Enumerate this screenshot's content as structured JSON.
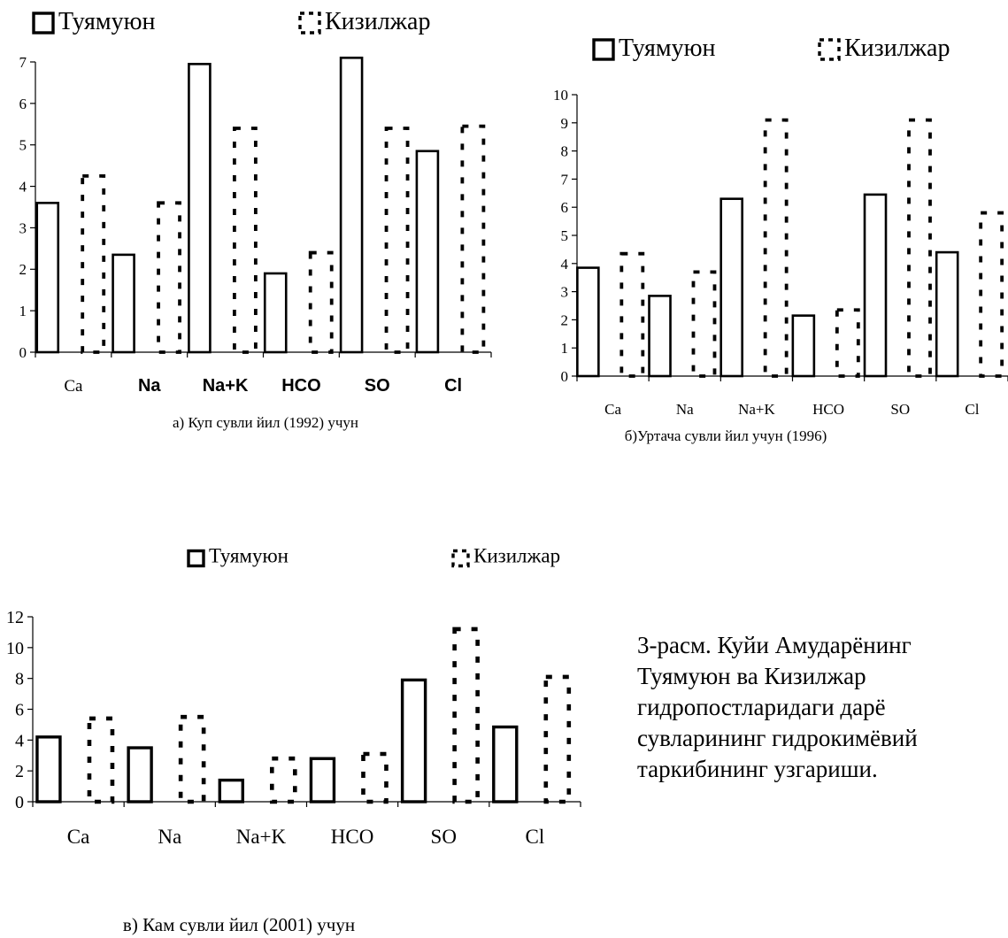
{
  "legend": {
    "series_a": "Туямуюн",
    "series_b": "Кизилжар"
  },
  "figure_caption": "3-расм. Куйи Амударёнинг Туямуюн ва Кизилжар гидропостларидаги дарё сувларининг гидрокимёвий таркибининг узгариши.",
  "chart_data": [
    {
      "type": "bar",
      "caption": "а) Куп сувли йил (1992) учун",
      "categories": [
        "Ca",
        "Na",
        "Na+K",
        "HCO",
        "SO",
        "Cl"
      ],
      "ylim": [
        0,
        7
      ],
      "yticks": [
        0,
        1,
        2,
        3,
        4,
        5,
        6,
        7
      ],
      "legend_position": "top",
      "grid": false,
      "series": [
        {
          "name": "Туямуюн",
          "values": [
            3.6,
            2.35,
            6.95,
            1.9,
            7.1,
            4.85
          ]
        },
        {
          "name": "Кизилжар",
          "values": [
            4.25,
            3.6,
            5.4,
            2.4,
            5.4,
            5.45
          ]
        }
      ]
    },
    {
      "type": "bar",
      "caption": "б)Уртача сувли йил учун (1996)",
      "categories": [
        "Ca",
        "Na",
        "Na+K",
        "HCO",
        "SO",
        "Cl"
      ],
      "ylim": [
        0,
        10
      ],
      "yticks": [
        0,
        1,
        2,
        3,
        4,
        5,
        6,
        7,
        8,
        9,
        10
      ],
      "legend_position": "top",
      "grid": false,
      "series": [
        {
          "name": "Туямуюн",
          "values": [
            3.85,
            2.85,
            6.3,
            2.15,
            6.45,
            4.4
          ]
        },
        {
          "name": "Кизилжар",
          "values": [
            4.35,
            3.7,
            9.1,
            2.35,
            9.1,
            5.8
          ]
        }
      ]
    },
    {
      "type": "bar",
      "caption": "в) Кам сувли йил (2001) учун",
      "categories": [
        "Ca",
        "Na",
        "Na+K",
        "HCO",
        "SO",
        "Cl"
      ],
      "ylim": [
        0,
        12
      ],
      "yticks": [
        0,
        2,
        4,
        6,
        8,
        10,
        12
      ],
      "legend_position": "top",
      "grid": false,
      "series": [
        {
          "name": "Туямуюн",
          "values": [
            4.2,
            3.5,
            1.4,
            2.8,
            7.9,
            4.85
          ]
        },
        {
          "name": "Кизилжар",
          "values": [
            5.4,
            5.5,
            2.8,
            3.1,
            11.2,
            8.1
          ]
        }
      ]
    }
  ]
}
